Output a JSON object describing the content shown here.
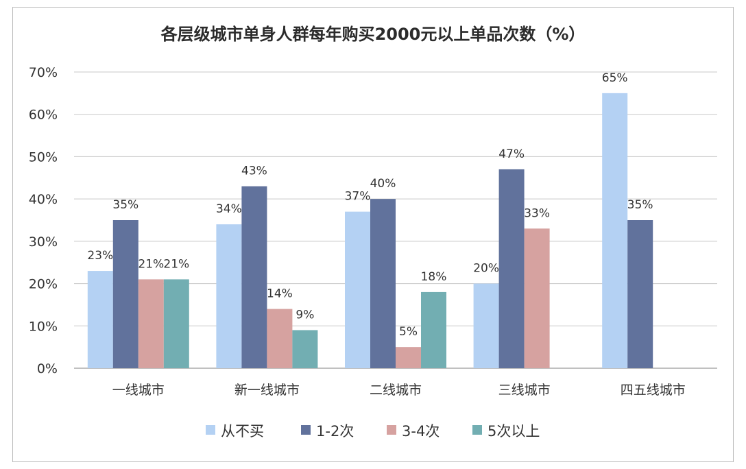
{
  "chart_data": {
    "type": "bar",
    "title": "各层级城市单身人群每年购买2000元以上单品次数（%）",
    "categories": [
      "一线城市",
      "新一线城市",
      "二线城市",
      "三线城市",
      "四五线城市"
    ],
    "series": [
      {
        "name": "从不买",
        "color": "#b4d1f3",
        "values": [
          23,
          34,
          37,
          20,
          65
        ]
      },
      {
        "name": "1-2次",
        "color": "#61729c",
        "values": [
          35,
          43,
          40,
          47,
          35
        ]
      },
      {
        "name": "3-4次",
        "color": "#d6a2a0",
        "values": [
          21,
          14,
          5,
          33,
          null
        ]
      },
      {
        "name": "5次以上",
        "color": "#72aeb2",
        "values": [
          21,
          9,
          18,
          null,
          null
        ]
      }
    ],
    "ylim": [
      0,
      70
    ],
    "yticks": [
      0,
      10,
      20,
      30,
      40,
      50,
      60,
      70
    ],
    "ytick_labels": [
      "0%",
      "10%",
      "20%",
      "30%",
      "40%",
      "50%",
      "60%",
      "70%"
    ],
    "value_suffix": "%",
    "grid": true,
    "legend_position": "bottom"
  }
}
